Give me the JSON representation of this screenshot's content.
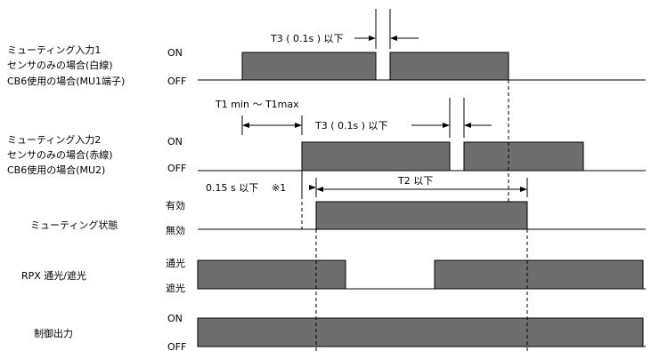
{
  "rows": [
    {
      "id": "mu1",
      "labels": [
        "ミューティング入力1",
        "センサのみの場合(白線)",
        "CB6使用の場合(MU1端子)"
      ],
      "hi": "ON",
      "lo": "OFF"
    },
    {
      "id": "mu2",
      "labels": [
        "ミューティング入力2",
        "センサのみの場合(赤線)",
        "CB6使用の場合(MU2)"
      ],
      "hi": "ON",
      "lo": "OFF"
    },
    {
      "id": "state",
      "labels": [
        "ミューティング状態"
      ],
      "hi": "有効",
      "lo": "無効"
    },
    {
      "id": "rpx",
      "labels": [
        "RPX 通光/遮光"
      ],
      "hi": "通光",
      "lo": "遮光"
    },
    {
      "id": "out",
      "labels": [
        "制御出力"
      ],
      "hi": "ON",
      "lo": "OFF"
    }
  ],
  "annotations": {
    "t3_top": "T3 ( 0.1s ) 以下",
    "t1": "T1 min 〜 T1max",
    "t3_mid": "T3 ( 0.1s ) 以下",
    "t015": "0.15 s 以下",
    "note": "※1",
    "t2": "T2 以下"
  }
}
